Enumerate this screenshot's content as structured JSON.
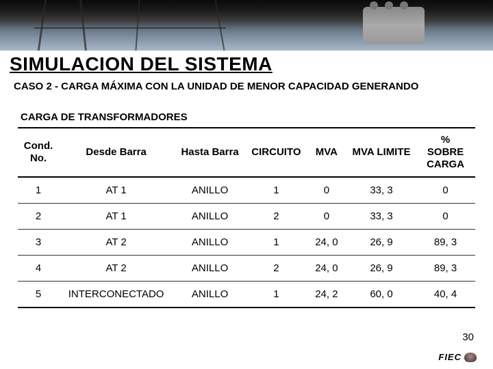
{
  "title": "SIMULACION DEL SISTEMA",
  "subtitle": "CASO 2 - CARGA MÁXIMA CON LA UNIDAD DE MENOR CAPACIDAD GENERANDO",
  "section_label": "CARGA DE TRANSFORMADORES",
  "slide_number": "30",
  "footer_logo_text": "FIEC",
  "table": {
    "columns": [
      {
        "key": "cond",
        "label": "Cond. No.",
        "class": "col-cond"
      },
      {
        "key": "desde",
        "label": "Desde Barra",
        "class": "col-desde"
      },
      {
        "key": "hasta",
        "label": "Hasta Barra",
        "class": "col-hasta"
      },
      {
        "key": "circ",
        "label": "CIRCUITO",
        "class": "col-circ"
      },
      {
        "key": "mva",
        "label": "MVA",
        "class": "col-mva"
      },
      {
        "key": "lim",
        "label": "MVA LIMITE",
        "class": "col-lim"
      },
      {
        "key": "pct",
        "label": "% SOBRE CARGA",
        "class": "col-pct"
      }
    ],
    "rows": [
      {
        "cond": "1",
        "desde": "AT 1",
        "hasta": "ANILLO",
        "circ": "1",
        "mva": "0",
        "lim": "33, 3",
        "pct": "0"
      },
      {
        "cond": "2",
        "desde": "AT 1",
        "hasta": "ANILLO",
        "circ": "2",
        "mva": "0",
        "lim": "33, 3",
        "pct": "0"
      },
      {
        "cond": "3",
        "desde": "AT 2",
        "hasta": "ANILLO",
        "circ": "1",
        "mva": "24, 0",
        "lim": "26, 9",
        "pct": "89, 3"
      },
      {
        "cond": "4",
        "desde": "AT 2",
        "hasta": "ANILLO",
        "circ": "2",
        "mva": "24, 0",
        "lim": "26, 9",
        "pct": "89, 3"
      },
      {
        "cond": "5",
        "desde": "INTERCONECTADO",
        "hasta": "ANILLO",
        "circ": "1",
        "mva": "24, 2",
        "lim": "60, 0",
        "pct": "40, 4"
      }
    ]
  },
  "colors": {
    "text": "#000000",
    "background": "#ffffff",
    "rule": "#000000",
    "row_rule": "#333333"
  }
}
